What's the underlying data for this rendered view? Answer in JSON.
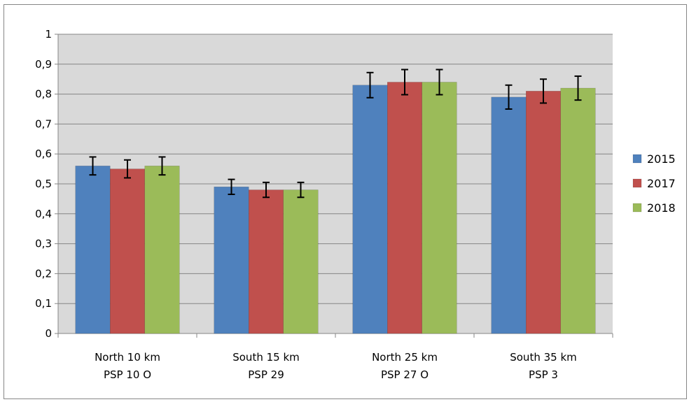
{
  "chart_data": {
    "type": "bar",
    "categories": [
      [
        "North 10 km",
        "PSP 10 O"
      ],
      [
        "South 15 km",
        "PSP 29"
      ],
      [
        "North 25 km",
        "PSP 27 O"
      ],
      [
        "South 35 km",
        "PSP 3"
      ]
    ],
    "series": [
      {
        "name": "2015",
        "color": "#4f81bd",
        "values": [
          0.56,
          0.49,
          0.83,
          0.79
        ],
        "errors": [
          0.03,
          0.025,
          0.042,
          0.04
        ]
      },
      {
        "name": "2017",
        "color": "#c0504d",
        "values": [
          0.55,
          0.48,
          0.84,
          0.81
        ],
        "errors": [
          0.03,
          0.025,
          0.042,
          0.04
        ]
      },
      {
        "name": "2018",
        "color": "#9bbb59",
        "values": [
          0.56,
          0.48,
          0.84,
          0.82
        ],
        "errors": [
          0.03,
          0.025,
          0.042,
          0.04
        ]
      }
    ],
    "ylim": [
      0,
      1
    ],
    "yticks": [
      "0",
      "0,1",
      "0,2",
      "0,3",
      "0,4",
      "0,5",
      "0,6",
      "0,7",
      "0,8",
      "0,9",
      "1"
    ],
    "grid": true,
    "legend_position": "right",
    "plot_background": "#d9d9d9",
    "title": "",
    "xlabel": "",
    "ylabel": ""
  }
}
